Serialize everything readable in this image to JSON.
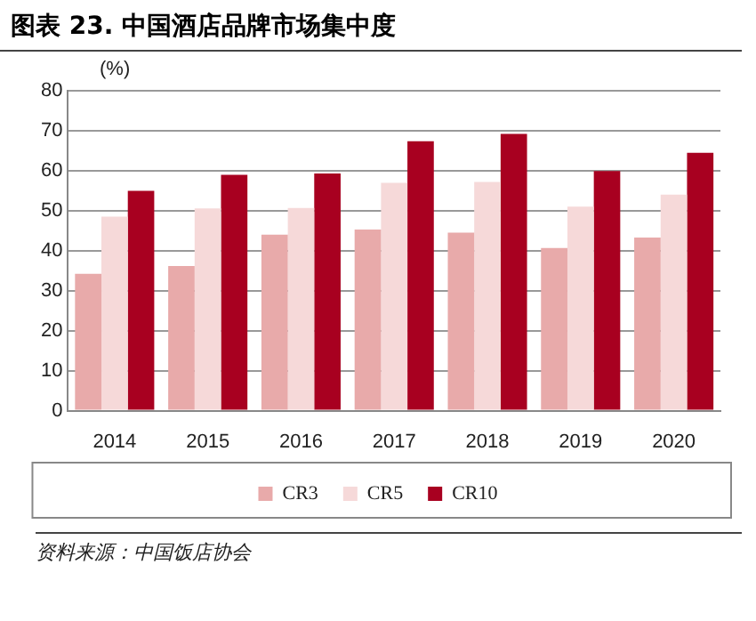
{
  "chart_data": {
    "type": "bar",
    "title": "图表 23. 中国酒店品牌市场集中度",
    "ylabel": "(%)",
    "categories": [
      "2014",
      "2015",
      "2016",
      "2017",
      "2018",
      "2019",
      "2020"
    ],
    "series": [
      {
        "name": "CR3",
        "color": "#e8aaaa",
        "values": [
          34.2,
          36.2,
          44,
          45.3,
          44.5,
          40.7,
          43.3
        ]
      },
      {
        "name": "CR5",
        "color": "#f6d9d9",
        "values": [
          48.5,
          50.6,
          50.7,
          57,
          57.2,
          51,
          54
        ]
      },
      {
        "name": "CR10",
        "color": "#a80020",
        "values": [
          55,
          59,
          59.3,
          67.4,
          69.2,
          59.9,
          64.5
        ]
      }
    ],
    "ylim": [
      0,
      80
    ],
    "yticks": [
      0,
      10,
      20,
      30,
      40,
      50,
      60,
      70,
      80
    ],
    "grid": "y",
    "legend": "bottom",
    "annotations": [
      "资料来源：中国饭店协会"
    ]
  }
}
